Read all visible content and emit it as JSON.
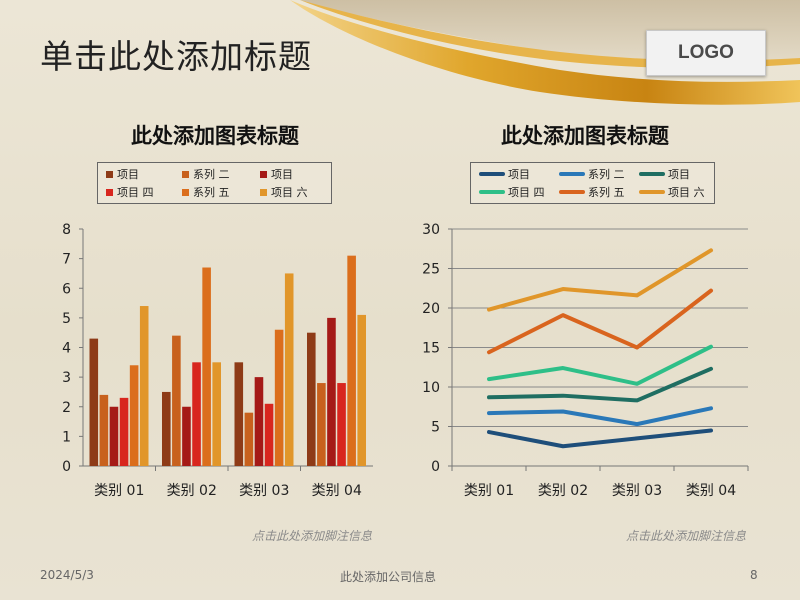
{
  "slide": {
    "title": "单击此处添加标题",
    "logo": "LOGO",
    "footer_date": "2024/5/3",
    "footer_company": "此处添加公司信息",
    "page_number": "8"
  },
  "colors": {
    "background": "#e8e2d1",
    "gold": "#c8962a"
  },
  "chart_data": [
    {
      "type": "bar",
      "title": "此处添加图表标题",
      "footnote": "点击此处添加脚注信息",
      "categories": [
        "类别 01",
        "类别 02",
        "类别 03",
        "类别 04"
      ],
      "ylim": [
        0,
        8
      ],
      "yticks": [
        0,
        1,
        2,
        3,
        4,
        5,
        6,
        7,
        8
      ],
      "grid": false,
      "legend_position": "top",
      "series": [
        {
          "name": "项目",
          "color": "#8e3b17",
          "values": [
            4.3,
            2.5,
            3.5,
            4.5
          ]
        },
        {
          "name": "系列 二",
          "color": "#c8611d",
          "values": [
            2.4,
            4.4,
            1.8,
            2.8
          ]
        },
        {
          "name": "项目",
          "color": "#a51a17",
          "values": [
            2.0,
            2.0,
            3.0,
            5.0
          ]
        },
        {
          "name": "项目 四",
          "color": "#d8261e",
          "values": [
            2.3,
            3.5,
            2.1,
            2.8
          ]
        },
        {
          "name": "系列 五",
          "color": "#db6e1c",
          "values": [
            3.4,
            6.7,
            4.6,
            7.1
          ]
        },
        {
          "name": "项目 六",
          "color": "#e1962a",
          "values": [
            5.4,
            3.5,
            6.5,
            5.1
          ]
        }
      ]
    },
    {
      "type": "line",
      "title": "此处添加图表标题",
      "footnote": "点击此处添加脚注信息",
      "categories": [
        "类别 01",
        "类别 02",
        "类别 03",
        "类别 04"
      ],
      "ylim": [
        0,
        30
      ],
      "yticks": [
        0,
        5,
        10,
        15,
        20,
        25,
        30
      ],
      "grid": true,
      "legend_position": "top",
      "series": [
        {
          "name": "项目",
          "color": "#1e4e7a",
          "values": [
            4.3,
            2.5,
            3.5,
            4.5
          ]
        },
        {
          "name": "系列 二",
          "color": "#2a78b8",
          "values": [
            6.7,
            6.9,
            5.3,
            7.3
          ]
        },
        {
          "name": "项目",
          "color": "#1f6e62",
          "values": [
            8.7,
            8.9,
            8.3,
            12.3
          ]
        },
        {
          "name": "项目 四",
          "color": "#2ebf88",
          "values": [
            11.0,
            12.4,
            10.4,
            15.1
          ]
        },
        {
          "name": "系列 五",
          "color": "#d9641e",
          "values": [
            14.4,
            19.1,
            15.0,
            22.2
          ]
        },
        {
          "name": "项目 六",
          "color": "#e0962a",
          "values": [
            19.8,
            22.4,
            21.6,
            27.3
          ]
        }
      ]
    }
  ]
}
